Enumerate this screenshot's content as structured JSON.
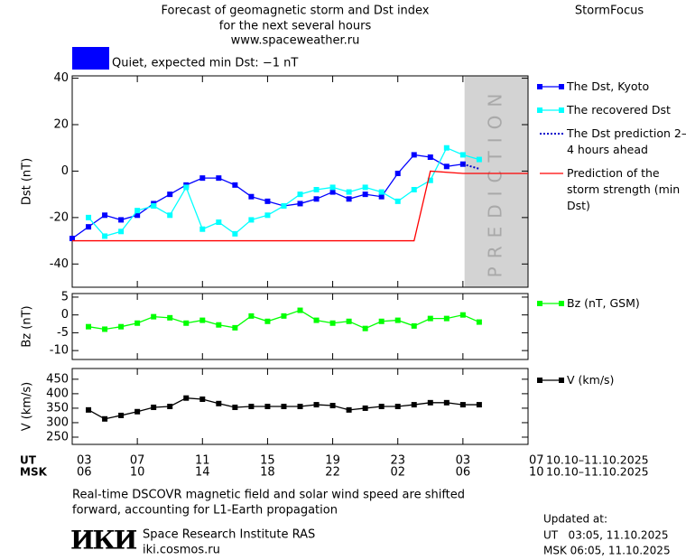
{
  "header": {
    "title_lines": [
      "Forecast of geomagnetic storm and Dst index",
      "for the next several hours",
      "www.spaceweather.ru"
    ],
    "brand": "StormFocus"
  },
  "status": {
    "label": "Quiet, expected min Dst: −1 nT",
    "color": "#0000ff"
  },
  "chart_data": [
    {
      "type": "line",
      "ylabel": "Dst (nT)",
      "xlim": [
        0,
        28
      ],
      "ylim": [
        -50,
        41
      ],
      "yticks": [
        -40,
        -20,
        0,
        20,
        40
      ],
      "prediction_zone": {
        "xlim": [
          24.1,
          28
        ],
        "label": "PREDICTION",
        "color": "#d3d3d3"
      },
      "series": [
        {
          "name": "The Dst, Kyoto",
          "color": "#0000ff",
          "marker": "square",
          "x": [
            0,
            1,
            2,
            3,
            4,
            5,
            6,
            7,
            8,
            9,
            10,
            11,
            12,
            13,
            14,
            15,
            16,
            17,
            18,
            19,
            20,
            21,
            22,
            23,
            24
          ],
          "values": [
            -29,
            -24,
            -19,
            -21,
            -19,
            -14,
            -10,
            -6,
            -3,
            -3,
            -6,
            -11,
            -13,
            -15,
            -14,
            -12,
            -9,
            -12,
            -10,
            -11,
            -1,
            7,
            6,
            2,
            3
          ]
        },
        {
          "name": "The recovered Dst",
          "color": "#00ffff",
          "marker": "square",
          "x": [
            1,
            2,
            3,
            4,
            5,
            6,
            7,
            8,
            9,
            10,
            11,
            12,
            13,
            14,
            15,
            16,
            17,
            18,
            19,
            20,
            21,
            22,
            23,
            24,
            25
          ],
          "values": [
            -20,
            -28,
            -26,
            -17,
            -15,
            -19,
            -7,
            -25,
            -22,
            -27,
            -21,
            -19,
            -15,
            -10,
            -8,
            -7,
            -9,
            -7,
            -9,
            -13,
            -8,
            -4,
            10,
            7,
            5
          ]
        },
        {
          "name": "The Dst prediction 2–4 hours ahead",
          "color": "#0000cc",
          "style": "dotted",
          "x": [
            24,
            25
          ],
          "values": [
            3,
            1
          ]
        },
        {
          "name": "Prediction of the storm strength (min Dst)",
          "color": "#ff0000",
          "x": [
            0,
            21,
            22,
            24,
            28
          ],
          "values": [
            -30,
            -30,
            0,
            -1,
            -1
          ]
        }
      ]
    },
    {
      "type": "line",
      "ylabel": "Bz (nT)",
      "xlim": [
        0,
        28
      ],
      "ylim": [
        -12.5,
        6
      ],
      "yticks": [
        -10,
        -5,
        0,
        5
      ],
      "series": [
        {
          "name": "Bz (nT, GSM)",
          "color": "#00ff00",
          "marker": "square",
          "x": [
            1,
            2,
            3,
            4,
            5,
            6,
            7,
            8,
            9,
            10,
            11,
            12,
            13,
            14,
            15,
            16,
            17,
            18,
            19,
            20,
            21,
            22,
            23,
            24,
            25
          ],
          "values": [
            -3.3,
            -4,
            -3.3,
            -2.3,
            -0.5,
            -0.8,
            -2.3,
            -1.5,
            -2.8,
            -3.6,
            -0.3,
            -1.8,
            -0.3,
            1.3,
            -1.5,
            -2.3,
            -1.8,
            -3.8,
            -1.8,
            -1.5,
            -3.1,
            -1,
            -1,
            0,
            -2
          ]
        }
      ]
    },
    {
      "type": "line",
      "ylabel": "V (km/s)",
      "xlim": [
        0,
        28
      ],
      "ylim": [
        225,
        487
      ],
      "yticks": [
        250,
        300,
        350,
        400,
        450
      ],
      "xticks": [
        {
          "value": 0,
          "label": "03"
        },
        {
          "value": 4,
          "label": "07"
        },
        {
          "value": 8,
          "label": "11"
        },
        {
          "value": 12,
          "label": "15"
        },
        {
          "value": 16,
          "label": "19"
        },
        {
          "value": 20,
          "label": "23"
        },
        {
          "value": 24,
          "label": "03"
        },
        {
          "value": 28,
          "label": "07"
        }
      ],
      "xticks_msk": [
        "06",
        "10",
        "14",
        "18",
        "22",
        "02",
        "06",
        "10"
      ],
      "xrow_labels": [
        "UT",
        "MSK"
      ],
      "date_range": "10.10–11.10.2025",
      "series": [
        {
          "name": "V (km/s)",
          "color": "#000000",
          "marker": "square",
          "x": [
            1,
            2,
            3,
            4,
            5,
            6,
            7,
            8,
            9,
            10,
            11,
            12,
            13,
            14,
            15,
            16,
            17,
            18,
            19,
            20,
            21,
            22,
            23,
            24,
            25
          ],
          "values": [
            344,
            313,
            325,
            338,
            353,
            356,
            385,
            381,
            366,
            353,
            356,
            356,
            356,
            356,
            362,
            359,
            344,
            350,
            356,
            356,
            362,
            369,
            369,
            362,
            362
          ]
        }
      ]
    }
  ],
  "footer": {
    "note_lines": [
      "Real-time DSCOVR magnetic field and solar wind speed are shifted",
      "forward, accounting for L1-Earth propagation"
    ],
    "logo": "ИКИ",
    "institute": "Space Research Institute RAS",
    "site": "iki.cosmos.ru",
    "updated_lines": [
      "Updated at:",
      "UT   03:05, 11.10.2025",
      "MSK 06:05, 11.10.2025"
    ]
  }
}
